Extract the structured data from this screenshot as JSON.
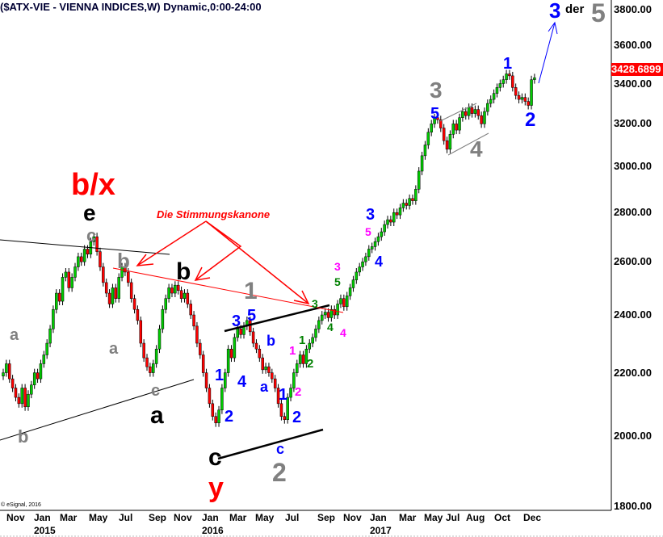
{
  "chart_data": {
    "type": "candlestick",
    "title": "($ATX-VIE - VIENNA INDICES,W) Dynamic,0:00-24:00",
    "interval": "weekly",
    "y_scale": "log",
    "ylim": [
      1800,
      3900
    ],
    "y_ticks": [
      "3800.00",
      "3600.00",
      "3400.00",
      "3200.00",
      "3000.00",
      "2800.00",
      "2600.00",
      "2400.00",
      "2200.00",
      "2000.00",
      "1800.00"
    ],
    "x_ticks": [
      "Nov",
      "Jan",
      "Mar",
      "May",
      "Jul",
      "Sep",
      "Nov",
      "Jan",
      "Mar",
      "May",
      "Jul",
      "Sep",
      "Nov",
      "Jan",
      "Mar",
      "May",
      "Jul",
      "Aug",
      "Oct",
      "Dec"
    ],
    "x_years": [
      "2015",
      "2016",
      "2017"
    ],
    "last_price": "3428.6899",
    "closes": [
      2200,
      2230,
      2180,
      2150,
      2120,
      2100,
      2150,
      2090,
      2130,
      2160,
      2200,
      2180,
      2230,
      2260,
      2300,
      2350,
      2420,
      2480,
      2450,
      2540,
      2560,
      2500,
      2540,
      2580,
      2620,
      2600,
      2650,
      2630,
      2680,
      2700,
      2640,
      2580,
      2520,
      2480,
      2440,
      2500,
      2460,
      2540,
      2580,
      2560,
      2520,
      2460,
      2420,
      2380,
      2300,
      2250,
      2220,
      2200,
      2230,
      2280,
      2350,
      2420,
      2460,
      2500,
      2480,
      2510,
      2490,
      2460,
      2480,
      2440,
      2400,
      2360,
      2300,
      2260,
      2200,
      2150,
      2100,
      2060,
      2040,
      2080,
      2150,
      2200,
      2280,
      2250,
      2320,
      2350,
      2330,
      2360,
      2380,
      2340,
      2300,
      2280,
      2250,
      2210,
      2220,
      2200,
      2180,
      2150,
      2100,
      2060,
      2050,
      2120,
      2150,
      2200,
      2230,
      2260,
      2230,
      2280,
      2300,
      2320,
      2350,
      2380,
      2400,
      2410,
      2390,
      2420,
      2400,
      2440,
      2460,
      2430,
      2470,
      2500,
      2530,
      2560,
      2580,
      2600,
      2620,
      2650,
      2660,
      2680,
      2700,
      2720,
      2750,
      2770,
      2760,
      2800,
      2790,
      2820,
      2840,
      2830,
      2860,
      2850,
      2900,
      2980,
      3050,
      3100,
      3160,
      3200,
      3230,
      3220,
      3180,
      3120,
      3080,
      3150,
      3200,
      3170,
      3230,
      3260,
      3240,
      3280,
      3250,
      3270,
      3240,
      3200,
      3260,
      3300,
      3320,
      3350,
      3380,
      3400,
      3420,
      3450,
      3440,
      3380,
      3340,
      3320,
      3330,
      3310,
      3290,
      3420,
      3430
    ],
    "colors": {
      "up": "#00cc00",
      "down": "#ff0000",
      "trendline": "#000000",
      "annotation_arrow": "#ff0000",
      "forecast_arrow": "#0000ff"
    },
    "grid": false,
    "note": "Die Stimmungskanone",
    "labels": [
      {
        "text": "b/x",
        "color": "#ff0000"
      },
      {
        "text": "e",
        "color": "#000000"
      },
      {
        "text": "c",
        "color": "#808080"
      },
      {
        "text": "b",
        "color": "#808080"
      },
      {
        "text": "b",
        "color": "#000000"
      },
      {
        "text": "a",
        "color": "#808080"
      },
      {
        "text": "a",
        "color": "#808080"
      },
      {
        "text": "c",
        "color": "#808080"
      },
      {
        "text": "a",
        "color": "#000000"
      },
      {
        "text": "b",
        "color": "#808080"
      },
      {
        "text": "c",
        "color": "#000000"
      },
      {
        "text": "y",
        "color": "#ff0000"
      },
      {
        "text": "1",
        "color": "#808080"
      },
      {
        "text": "3",
        "color": "#0000ff"
      },
      {
        "text": "5",
        "color": "#0000ff"
      },
      {
        "text": "1",
        "color": "#0000ff"
      },
      {
        "text": "4",
        "color": "#0000ff"
      },
      {
        "text": "2",
        "color": "#0000ff"
      },
      {
        "text": "b",
        "color": "#0000ff"
      },
      {
        "text": "a",
        "color": "#0000ff"
      },
      {
        "text": "1",
        "color": "#0000ff"
      },
      {
        "text": "2",
        "color": "#0000ff"
      },
      {
        "text": "c",
        "color": "#0000ff"
      },
      {
        "text": "2",
        "color": "#808080"
      },
      {
        "text": "1",
        "color": "#ff00ff"
      },
      {
        "text": "2",
        "color": "#ff00ff"
      },
      {
        "text": "1",
        "color": "#008000"
      },
      {
        "text": "2",
        "color": "#008000"
      },
      {
        "text": "3",
        "color": "#008000"
      },
      {
        "text": "4",
        "color": "#008000"
      },
      {
        "text": "4",
        "color": "#ff00ff"
      },
      {
        "text": "3",
        "color": "#ff00ff"
      },
      {
        "text": "5",
        "color": "#008000"
      },
      {
        "text": "5",
        "color": "#ff00ff"
      },
      {
        "text": "3",
        "color": "#0000ff"
      },
      {
        "text": "4",
        "color": "#0000ff"
      },
      {
        "text": "3",
        "color": "#808080"
      },
      {
        "text": "5",
        "color": "#0000ff"
      },
      {
        "text": "4",
        "color": "#808080"
      },
      {
        "text": "1",
        "color": "#0000ff"
      },
      {
        "text": "2",
        "color": "#0000ff"
      },
      {
        "text": "3",
        "color": "#0000ff"
      },
      {
        "text": "der",
        "color": "#000000"
      },
      {
        "text": "5",
        "color": "#808080"
      }
    ]
  },
  "footer": {
    "copyright": "© eSignal, 2016"
  }
}
